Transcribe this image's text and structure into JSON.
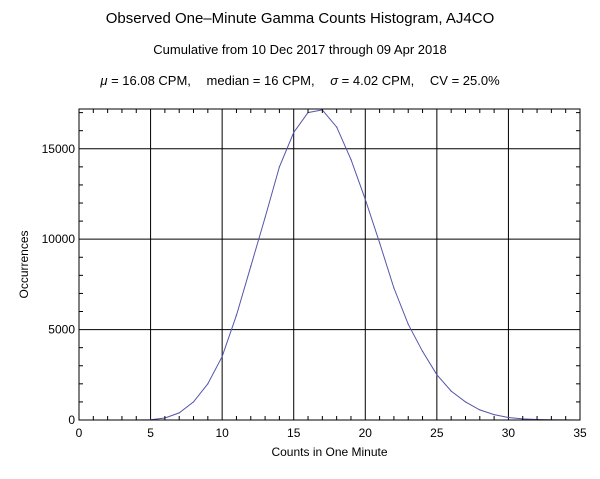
{
  "chart_data": {
    "type": "line",
    "title": "Observed One–Minute Gamma Counts Histogram, AJ4CO",
    "subtitle": "Cumulative from 10 Dec 2017 through 09 Apr 2018",
    "stats": [
      {
        "symbol": "μ",
        "text": " = 16.08 CPM,"
      },
      {
        "symbol": "",
        "text": "median = 16 CPM,"
      },
      {
        "symbol": "σ",
        "text": " = 4.02 CPM,"
      },
      {
        "symbol": "",
        "text": "CV = 25.0%"
      }
    ],
    "xlabel": "Counts in One Minute",
    "ylabel": "Occurrences",
    "xlim": [
      0,
      35
    ],
    "ylim": [
      0,
      17200
    ],
    "x_ticks": [
      0,
      5,
      10,
      15,
      20,
      25,
      30,
      35
    ],
    "y_ticks": [
      0,
      5000,
      10000,
      15000
    ],
    "grid": true,
    "line_color": "#5555aa",
    "x": [
      0,
      1,
      2,
      3,
      4,
      5,
      6,
      7,
      8,
      9,
      10,
      11,
      12,
      13,
      14,
      15,
      16,
      17,
      18,
      19,
      20,
      21,
      22,
      23,
      24,
      25,
      26,
      27,
      28,
      29,
      30,
      31,
      32,
      33,
      34,
      35
    ],
    "values": [
      0,
      0,
      0,
      0,
      2,
      15,
      110,
      390,
      1000,
      2000,
      3500,
      5800,
      8500,
      11200,
      14000,
      15900,
      17000,
      17150,
      16200,
      14400,
      12200,
      9800,
      7300,
      5300,
      3800,
      2500,
      1600,
      1000,
      560,
      300,
      140,
      60,
      25,
      10,
      3,
      1
    ]
  }
}
